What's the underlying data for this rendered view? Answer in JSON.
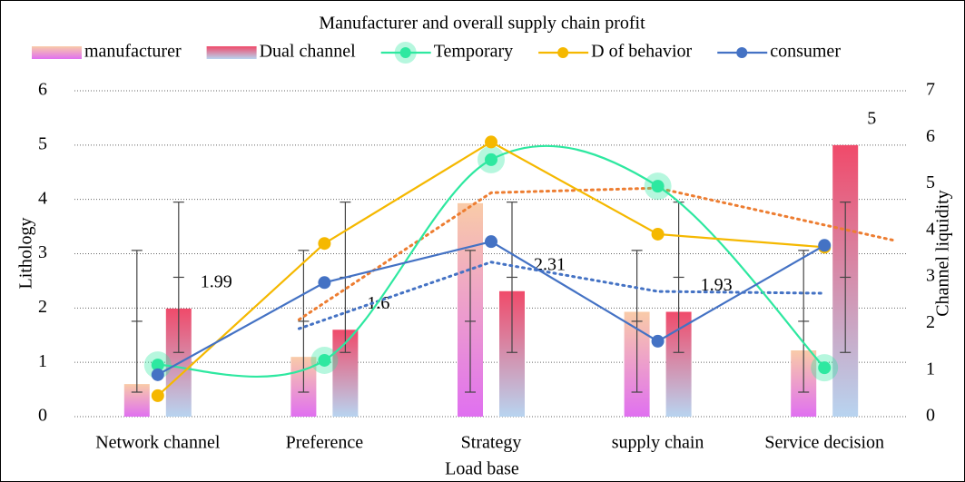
{
  "chart_data": {
    "type": "bar",
    "title": "Manufacturer and overall supply chain profit",
    "x_label": "Load base",
    "y_label": "Lithology",
    "y2_label": "Channel liquidity",
    "categories": [
      "Network channel",
      "Preference",
      "Strategy",
      "supply chain",
      "Service decision"
    ],
    "ylim": [
      0,
      6
    ],
    "yticks": [
      0,
      1,
      2,
      3,
      4,
      5,
      6
    ],
    "y2lim": [
      0,
      7
    ],
    "y2ticks": [
      0,
      1,
      2,
      3,
      4,
      5,
      6,
      7
    ],
    "grid": true,
    "legend": "top",
    "error_bars": "standard_deviation",
    "series": [
      {
        "name": "manufacturer",
        "type": "bar",
        "color": [
          "#f9cba8",
          "#e070f0"
        ],
        "values": [
          0.6,
          1.1,
          3.93,
          1.93,
          1.22
        ]
      },
      {
        "name": "Dual channel",
        "type": "bar",
        "color": [
          "#f04a6a",
          "#b8d4f0"
        ],
        "values": [
          1.99,
          1.6,
          2.31,
          1.93,
          5
        ],
        "show_labels": true
      },
      {
        "name": "Temporary",
        "type": "line",
        "axis": "y2",
        "smooth": true,
        "halo": true,
        "color": "#2ee8a0",
        "values": [
          1.11,
          1.21,
          5.52,
          4.95,
          1.05
        ]
      },
      {
        "name": "D of behavior",
        "type": "line",
        "axis": "y2",
        "color": "#f5b800",
        "trend_color": "#ed7d31",
        "trendline": "moving_average",
        "values": [
          0.45,
          3.72,
          5.9,
          3.92,
          3.64
        ]
      },
      {
        "name": "consumer",
        "type": "line",
        "axis": "y2",
        "color": "#4472c4",
        "trend_color": "#4472c4",
        "trendline": "moving_average",
        "values": [
          0.9,
          2.88,
          3.76,
          1.62,
          3.68
        ]
      }
    ]
  }
}
